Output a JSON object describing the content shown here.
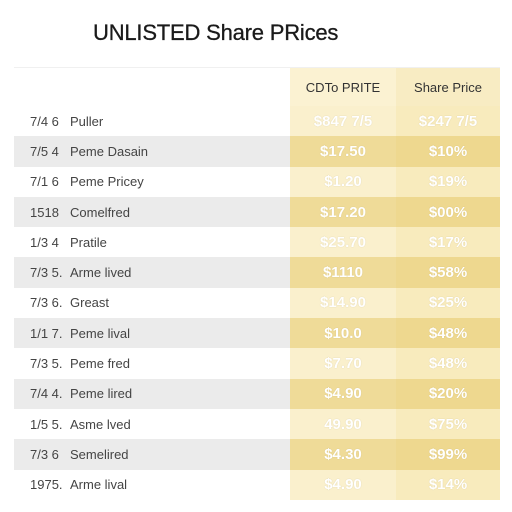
{
  "page": {
    "title": "UNLISTED Share PRices"
  },
  "table": {
    "columns": [
      "CDTo PRITE",
      "Share Price"
    ],
    "colors": {
      "band_light_1": "#faf0cd",
      "band_dark_1": "#efdb98",
      "band_light_2": "#f8ebbd",
      "band_dark_2": "#eed88f",
      "row_stripe": "#ebebeb"
    },
    "rows": [
      {
        "date": "7/4 6",
        "name": "Puller",
        "price": "$847 7/5",
        "share": "$247 7/5"
      },
      {
        "date": "7/5 4",
        "name": "Peme Dasain",
        "price": "$17.50",
        "share": "$10%"
      },
      {
        "date": "7/1 6",
        "name": "Peme Pricey",
        "price": "$1.20",
        "share": "$19%"
      },
      {
        "date": "1518",
        "name": "Comelfred",
        "price": "$17.20",
        "share": "$00%"
      },
      {
        "date": "1/3 4",
        "name": "Pratile",
        "price": "$25.70",
        "share": "$17%"
      },
      {
        "date": "7/3 5.",
        "name": "Arme lived",
        "price": "$1110",
        "share": "$58%"
      },
      {
        "date": "7/3 6.",
        "name": "Greast",
        "price": "$14.90",
        "share": "$25%"
      },
      {
        "date": "1/1 7.",
        "name": "Peme lival",
        "price": "$10.0",
        "share": "$48%"
      },
      {
        "date": "7/3 5.",
        "name": "Peme fred",
        "price": "$7.70",
        "share": "$48%"
      },
      {
        "date": "7/4 4.",
        "name": "Peme lired",
        "price": "$4.90",
        "share": "$20%"
      },
      {
        "date": "1/5 5.",
        "name": "Asme lved",
        "price": "49.90",
        "share": "$75%"
      },
      {
        "date": "7/3 6",
        "name": "Semelired",
        "price": "$4.30",
        "share": "$99%"
      },
      {
        "date": "1975.",
        "name": "Arme lival",
        "price": "$4.90",
        "share": "$14%"
      }
    ]
  }
}
